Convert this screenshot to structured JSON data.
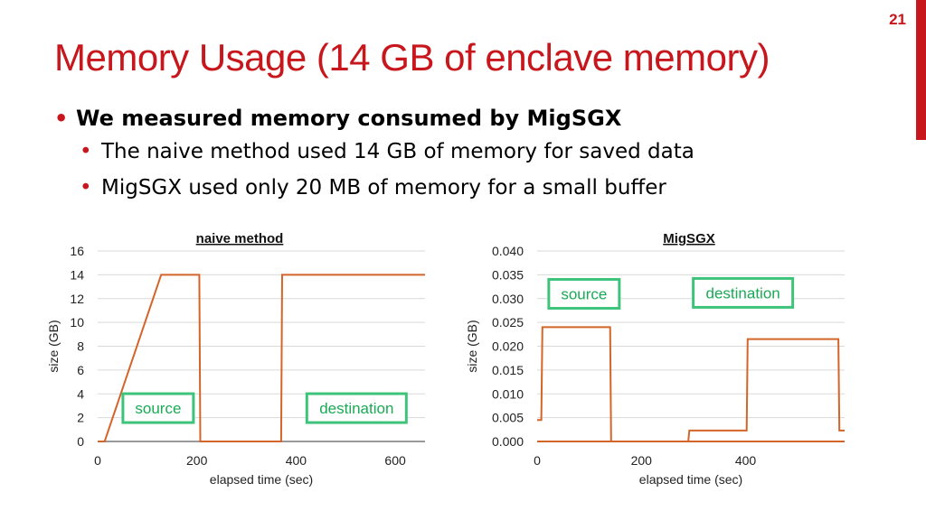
{
  "page_number": "21",
  "title": "Memory Usage (14 GB of enclave memory)",
  "bullets": {
    "main": "We measured memory consumed by MigSGX",
    "sub": [
      "The naive method used 14 GB of memory for saved data",
      "MigSGX used only 20 MB of memory for a small buffer"
    ]
  },
  "colors": {
    "accent": "#c8161d",
    "line": "#d4652a",
    "baseline": "#9a9a9a",
    "annotation": "#3ec47a",
    "grid": "#d9d9d9"
  },
  "chart_data": [
    {
      "type": "line",
      "title": "naive method",
      "xlabel": "elapsed time (sec)",
      "ylabel": "size (GB)",
      "xlim": [
        0,
        660
      ],
      "ylim": [
        0,
        16
      ],
      "xticks": [
        "0",
        "200",
        "400",
        "600"
      ],
      "yticks": [
        "0",
        "2",
        "4",
        "6",
        "8",
        "10",
        "12",
        "14",
        "16"
      ],
      "grid": true,
      "series": [
        {
          "x": [
            0,
            14,
            128,
            133,
            205,
            207,
            370,
            372,
            660
          ],
          "y": [
            0,
            0,
            14,
            14,
            14,
            0,
            0,
            14,
            14
          ]
        }
      ],
      "annotations": [
        {
          "label": "source",
          "x": 122,
          "y": 2.8
        },
        {
          "label": "destination",
          "x": 522,
          "y": 2.8
        }
      ]
    },
    {
      "type": "line",
      "title": "MigSGX",
      "xlabel": "elapsed time (sec)",
      "ylabel": "size (GB)",
      "xlim": [
        0,
        590
      ],
      "ylim": [
        0,
        0.04
      ],
      "xticks": [
        "0",
        "200",
        "400"
      ],
      "yticks": [
        "0.000",
        "0.005",
        "0.010",
        "0.015",
        "0.020",
        "0.025",
        "0.030",
        "0.035",
        "0.040"
      ],
      "grid": true,
      "series": [
        {
          "x": [
            0,
            8,
            10,
            140,
            142,
            590
          ],
          "y": [
            0.0045,
            0.0045,
            0.024,
            0.024,
            0,
            0
          ]
        },
        {
          "x": [
            0,
            290,
            292,
            402,
            404,
            578,
            580,
            590
          ],
          "y": [
            0,
            0,
            0.0023,
            0.0023,
            0.0215,
            0.0215,
            0.0023,
            0.0023
          ]
        }
      ],
      "annotations": [
        {
          "label": "source",
          "x": 90,
          "y": 0.031
        },
        {
          "label": "destination",
          "x": 395,
          "y": 0.0312
        }
      ]
    }
  ]
}
